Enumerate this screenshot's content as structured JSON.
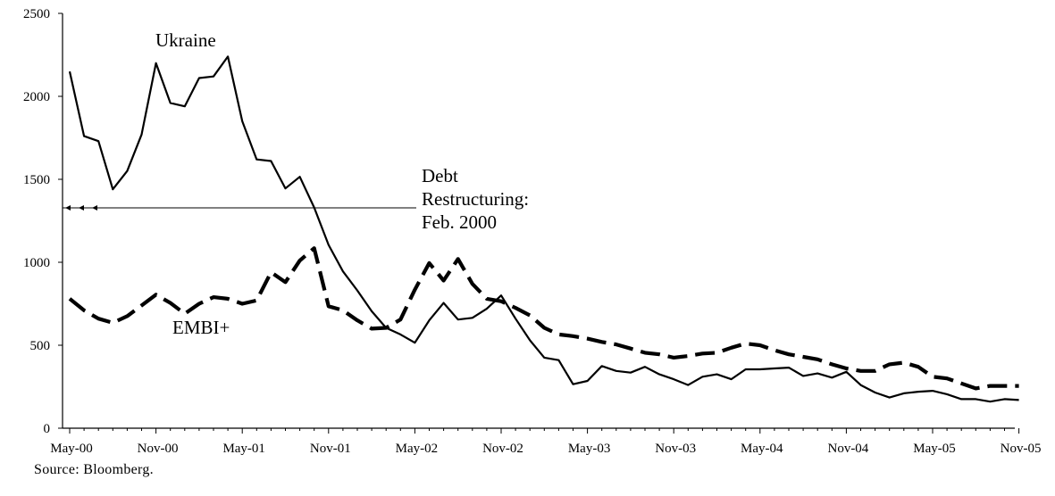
{
  "chart_data": {
    "type": "line",
    "title": "",
    "xlabel": "",
    "ylabel": "",
    "ylim": [
      0,
      2500
    ],
    "yticks": [
      0,
      500,
      1000,
      1500,
      2000,
      2500
    ],
    "x_tick_labels": [
      "May-00",
      "Nov-00",
      "May-01",
      "Nov-01",
      "May-02",
      "Nov-02",
      "May-03",
      "Nov-03",
      "May-04",
      "Nov-04",
      "May-05",
      "Nov-05"
    ],
    "x_start": "May-00",
    "x_end": "Nov-05",
    "grid": false,
    "series": [
      {
        "name": "Ukraine",
        "style": "solid",
        "color": "#000000",
        "values": [
          2150,
          1760,
          1730,
          1440,
          1550,
          1770,
          2200,
          1960,
          1940,
          2110,
          2120,
          2240,
          1850,
          1620,
          1610,
          1445,
          1515,
          1330,
          1105,
          945,
          830,
          705,
          605,
          565,
          515,
          650,
          755,
          655,
          665,
          720,
          800,
          660,
          530,
          425,
          410,
          265,
          285,
          375,
          345,
          335,
          370,
          325,
          295,
          260,
          310,
          325,
          295,
          355,
          355,
          360,
          365,
          315,
          330,
          305,
          340,
          260,
          215,
          185,
          210,
          220,
          225,
          205,
          175,
          175,
          160,
          175,
          170
        ],
        "annotation": "Ukraine"
      },
      {
        "name": "EMBI+",
        "style": "dashed",
        "color": "#000000",
        "values": [
          780,
          710,
          660,
          635,
          675,
          740,
          805,
          755,
          690,
          750,
          790,
          780,
          750,
          770,
          940,
          880,
          1010,
          1085,
          735,
          710,
          650,
          600,
          605,
          655,
          835,
          995,
          890,
          1020,
          870,
          780,
          765,
          725,
          680,
          605,
          565,
          555,
          540,
          520,
          505,
          480,
          455,
          445,
          425,
          435,
          450,
          455,
          485,
          510,
          500,
          470,
          445,
          430,
          415,
          385,
          360,
          345,
          345,
          385,
          395,
          370,
          310,
          300,
          270,
          240,
          255,
          255,
          255
        ],
        "annotation": "EMBI+"
      }
    ],
    "annotations": [
      {
        "text_lines": [
          "Debt",
          "Restructuring:",
          "Feb. 2000"
        ]
      }
    ]
  },
  "source_note": "Source: Bloomberg."
}
